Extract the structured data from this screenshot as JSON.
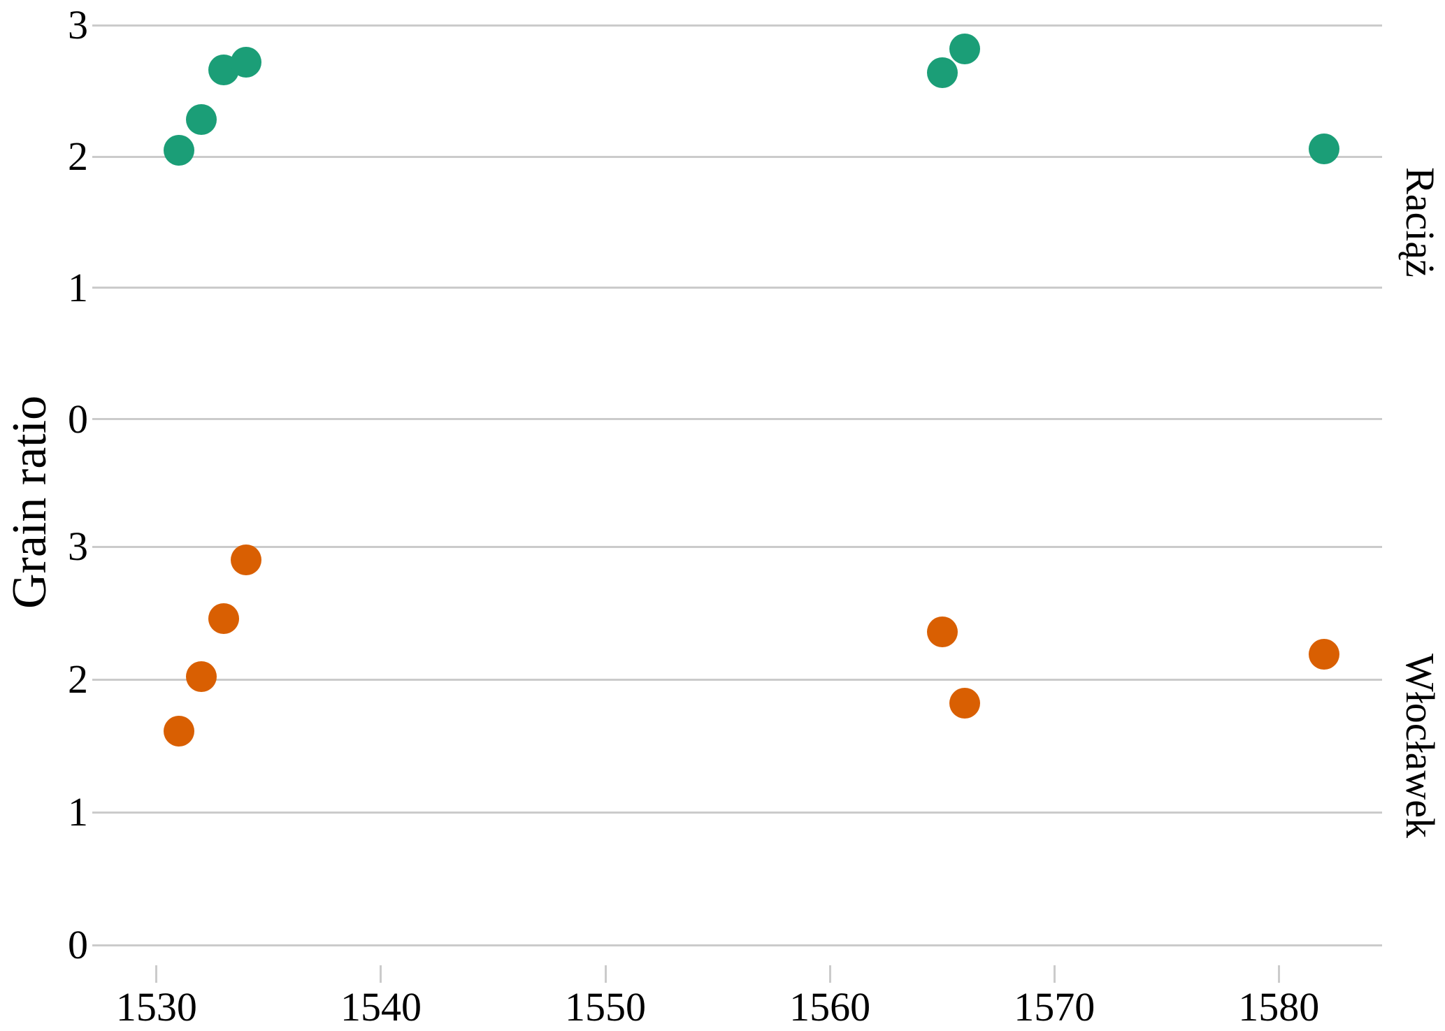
{
  "colors": {
    "raciaz_points": "#1B9E77",
    "wloclawek_points": "#D95F02",
    "gridline": "#CBCBCB",
    "tick": "#CBCBCB",
    "text": "#000000",
    "background": "#FFFFFF"
  },
  "chart_data": {
    "type": "scatter",
    "title": "",
    "xlabel": "",
    "ylabel": "Grain ratio",
    "legend": "none",
    "grid": "horizontal gridlines only",
    "x_ticks": [
      1530,
      1540,
      1550,
      1560,
      1570,
      1580
    ],
    "y_ticks": [
      3,
      2,
      1,
      0
    ],
    "x_domain": [
      1527.7,
      1584.6
    ],
    "y_domain": [
      -0.15,
      3.15
    ],
    "facets": [
      {
        "label": "Raciąż",
        "color": "#1B9E77",
        "points": [
          {
            "x": 1531,
            "y": 2.05
          },
          {
            "x": 1532,
            "y": 2.28
          },
          {
            "x": 1533,
            "y": 2.66
          },
          {
            "x": 1534,
            "y": 2.72
          },
          {
            "x": 1565,
            "y": 2.64
          },
          {
            "x": 1566,
            "y": 2.82
          },
          {
            "x": 1582,
            "y": 2.06
          }
        ]
      },
      {
        "label": "Włocławek",
        "color": "#D95F02",
        "points": [
          {
            "x": 1531,
            "y": 1.61
          },
          {
            "x": 1532,
            "y": 2.02
          },
          {
            "x": 1533,
            "y": 2.46
          },
          {
            "x": 1534,
            "y": 2.9
          },
          {
            "x": 1565,
            "y": 2.36
          },
          {
            "x": 1566,
            "y": 1.82
          },
          {
            "x": 1582,
            "y": 2.19
          }
        ]
      }
    ]
  }
}
